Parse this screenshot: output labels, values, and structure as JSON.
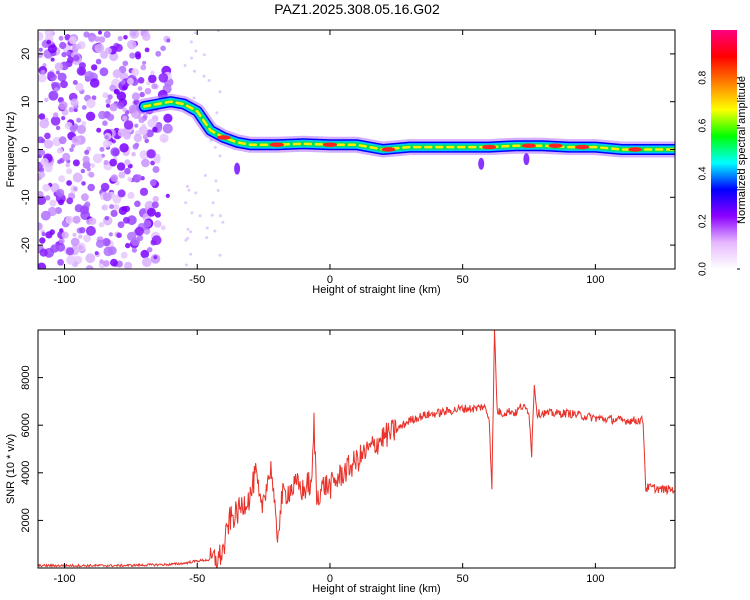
{
  "title": "PAZ1.2025.308.05.16.G02",
  "colors": {
    "snr_line": "#e8322a",
    "axis": "#000000",
    "scatter": "#8a2be2"
  },
  "chart_data": [
    {
      "type": "heatmap",
      "xlabel": "Height of straight line (km)",
      "ylabel": "Frequency (Hz)",
      "xlim": [
        -110,
        130
      ],
      "ylim": [
        -25,
        25
      ],
      "xticks": [
        -100,
        -50,
        0,
        50,
        100
      ],
      "yticks": [
        -20,
        -10,
        0,
        10,
        20
      ],
      "grid": false,
      "colorbar": {
        "label": "Normalized spectral amplitude",
        "range": [
          0.0,
          1.0
        ],
        "ticks": [
          "0.0",
          "0.2",
          "0.4",
          "0.6",
          "0.8"
        ],
        "colormap": [
          "#ffffff",
          "#e6b8ff",
          "#8b00ff",
          "#0000ff",
          "#00ffff",
          "#00ff00",
          "#ffff00",
          "#ff8000",
          "#ff0000",
          "#ff0080"
        ]
      },
      "ridge": {
        "x": [
          -70,
          -65,
          -60,
          -55,
          -50,
          -45,
          -40,
          -35,
          -30,
          -20,
          -10,
          0,
          10,
          20,
          30,
          40,
          50,
          60,
          70,
          80,
          90,
          100,
          110,
          120,
          130
        ],
        "frequency": [
          9,
          9.5,
          10,
          9.5,
          8,
          4,
          2.5,
          1.5,
          1,
          1,
          1.2,
          1,
          1,
          0,
          0.5,
          0.5,
          0.5,
          0.5,
          0.8,
          0.8,
          0.5,
          0.5,
          0,
          0,
          0
        ]
      }
    },
    {
      "type": "line",
      "xlabel": "Height of straight line (km)",
      "ylabel": "SNR (10 * v/v)",
      "xlim": [
        -110,
        130
      ],
      "ylim": [
        0,
        10000
      ],
      "xticks": [
        -100,
        -50,
        0,
        50,
        100
      ],
      "yticks": [
        2000,
        4000,
        6000,
        8000
      ],
      "grid": false,
      "series": [
        {
          "x": [
            -110,
            -100,
            -80,
            -60,
            -55,
            -50,
            -45,
            -42,
            -40,
            -38,
            -35,
            -32,
            -30,
            -28,
            -26,
            -24,
            -22,
            -20,
            -18,
            -15,
            -12,
            -10,
            -8,
            -7,
            -6,
            -5,
            -4,
            -2,
            0,
            5,
            10,
            15,
            20,
            25,
            30,
            35,
            40,
            45,
            50,
            55,
            58,
            60,
            61,
            62,
            63,
            65,
            68,
            70,
            72,
            75,
            76,
            77,
            78,
            80,
            90,
            100,
            110,
            118,
            119,
            120,
            125,
            130
          ],
          "y": [
            100,
            100,
            100,
            150,
            200,
            300,
            350,
            400,
            800,
            2000,
            2300,
            2800,
            3000,
            4000,
            2400,
            3500,
            4200,
            1200,
            3000,
            3300,
            3500,
            3200,
            3600,
            3200,
            6100,
            2900,
            3200,
            3500,
            3400,
            4000,
            4500,
            5000,
            5500,
            5800,
            6200,
            6400,
            6500,
            6600,
            6700,
            6700,
            6800,
            6300,
            3400,
            10000,
            6600,
            6500,
            6600,
            6500,
            6800,
            6600,
            4800,
            7800,
            6500,
            6500,
            6500,
            6300,
            6200,
            6200,
            3300,
            3400,
            3300,
            3300
          ]
        }
      ]
    }
  ]
}
